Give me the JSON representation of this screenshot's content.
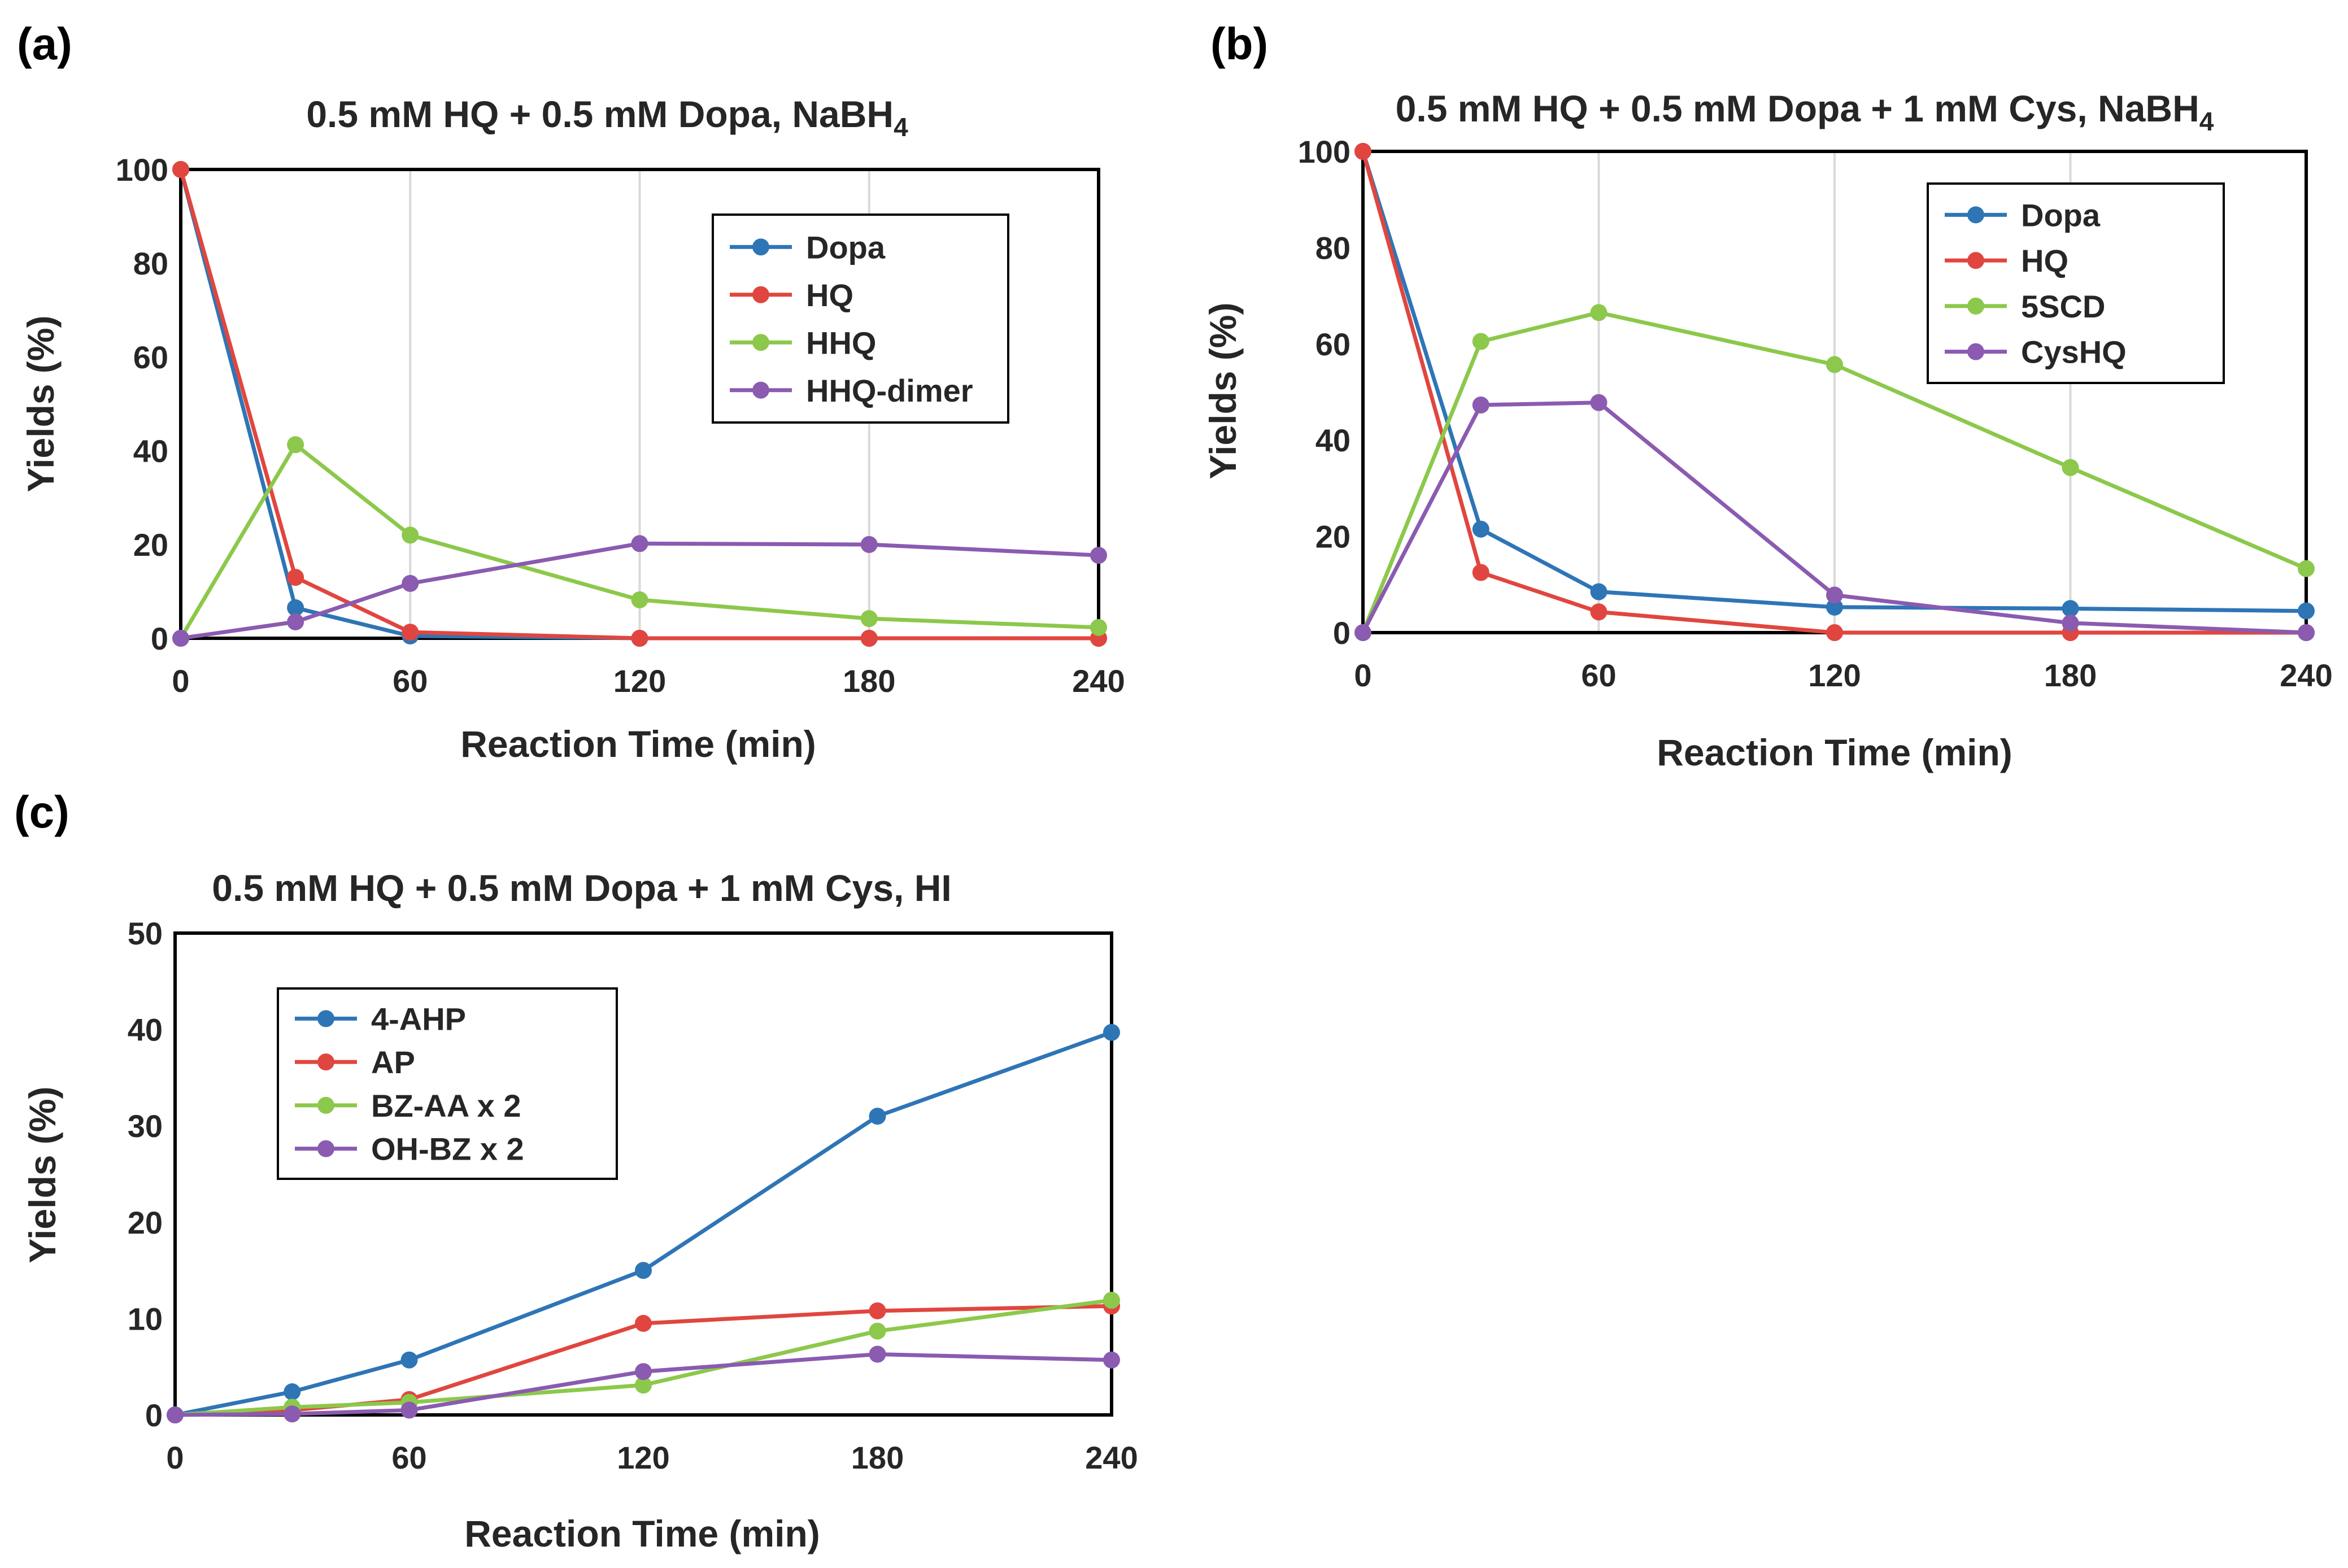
{
  "colors": {
    "blue": "#2e75b6",
    "red": "#e0463f",
    "green": "#8cc84b",
    "purple": "#8a5bb0",
    "grid": "#d9d9d9",
    "frame": "#000000"
  },
  "chart_data": [
    {
      "panel": "(a)",
      "type": "line",
      "title": "0.5 mM HQ + 0.5 mM Dopa, NaBH",
      "title_subscript": "4",
      "xlabel": "Reaction Time (min)",
      "ylabel": "Yields (%)",
      "xlim": [
        0,
        240
      ],
      "ylim": [
        0,
        100
      ],
      "xticks": [
        0,
        60,
        120,
        180,
        240
      ],
      "yticks": [
        0,
        20,
        40,
        60,
        80,
        100
      ],
      "grid": "vertical",
      "legend_position": "top-right",
      "x": [
        0,
        30,
        60,
        120,
        180,
        240
      ],
      "series": [
        {
          "name": "Dopa",
          "color": "#2e75b6",
          "values": [
            100,
            6.5,
            0.5,
            0,
            0,
            0
          ]
        },
        {
          "name": "HQ",
          "color": "#e0463f",
          "values": [
            100,
            13,
            1.3,
            0,
            0,
            0
          ]
        },
        {
          "name": "HHQ",
          "color": "#8cc84b",
          "values": [
            0,
            41.3,
            22,
            8.2,
            4.2,
            2.3
          ]
        },
        {
          "name": "HHQ-dimer",
          "color": "#8a5bb0",
          "values": [
            0,
            3.5,
            11.7,
            20.2,
            20,
            17.7
          ]
        }
      ]
    },
    {
      "panel": "(b)",
      "type": "line",
      "title": "0.5 mM HQ + 0.5 mM Dopa + 1 mM Cys, NaBH",
      "title_subscript": "4",
      "xlabel": "Reaction Time (min)",
      "ylabel": "Yields (%)",
      "xlim": [
        0,
        240
      ],
      "ylim": [
        0,
        100
      ],
      "xticks": [
        0,
        60,
        120,
        180,
        240
      ],
      "yticks": [
        0,
        20,
        40,
        60,
        80,
        100
      ],
      "grid": "vertical",
      "legend_position": "top-right",
      "x": [
        0,
        30,
        60,
        120,
        180,
        240
      ],
      "series": [
        {
          "name": "Dopa",
          "color": "#2e75b6",
          "values": [
            100,
            21.5,
            8.5,
            5.3,
            5,
            4.5
          ]
        },
        {
          "name": "HQ",
          "color": "#e0463f",
          "values": [
            100,
            12.5,
            4.3,
            0,
            0,
            0
          ]
        },
        {
          "name": "5SCD",
          "color": "#8cc84b",
          "values": [
            0,
            60.5,
            66.5,
            55.7,
            34.3,
            13.3
          ]
        },
        {
          "name": "CysHQ",
          "color": "#8a5bb0",
          "values": [
            0,
            47.3,
            47.8,
            7.8,
            2,
            0
          ]
        }
      ]
    },
    {
      "panel": "(c)",
      "type": "line",
      "title": "0.5 mM HQ + 0.5 mM Dopa + 1 mM Cys, HI",
      "title_subscript": "",
      "xlabel": "Reaction Time (min)",
      "ylabel": "Yields (%)",
      "xlim": [
        0,
        240
      ],
      "ylim": [
        0,
        50
      ],
      "xticks": [
        0,
        60,
        120,
        180,
        240
      ],
      "yticks": [
        0,
        10,
        20,
        30,
        40,
        50
      ],
      "grid": "none",
      "legend_position": "top-left",
      "x": [
        0,
        30,
        60,
        120,
        180,
        240
      ],
      "series": [
        {
          "name": "4-AHP",
          "color": "#2e75b6",
          "values": [
            0,
            2.4,
            5.7,
            15,
            31,
            39.7
          ]
        },
        {
          "name": "AP",
          "color": "#e0463f",
          "values": [
            0,
            0.5,
            1.6,
            9.5,
            10.8,
            11.3
          ]
        },
        {
          "name": "BZ-AA x 2",
          "color": "#8cc84b",
          "values": [
            0,
            0.8,
            1.3,
            3.1,
            8.7,
            11.9
          ]
        },
        {
          "name": "OH-BZ x 2",
          "color": "#8a5bb0",
          "values": [
            0,
            0.1,
            0.5,
            4.5,
            6.3,
            5.7
          ]
        }
      ]
    }
  ]
}
